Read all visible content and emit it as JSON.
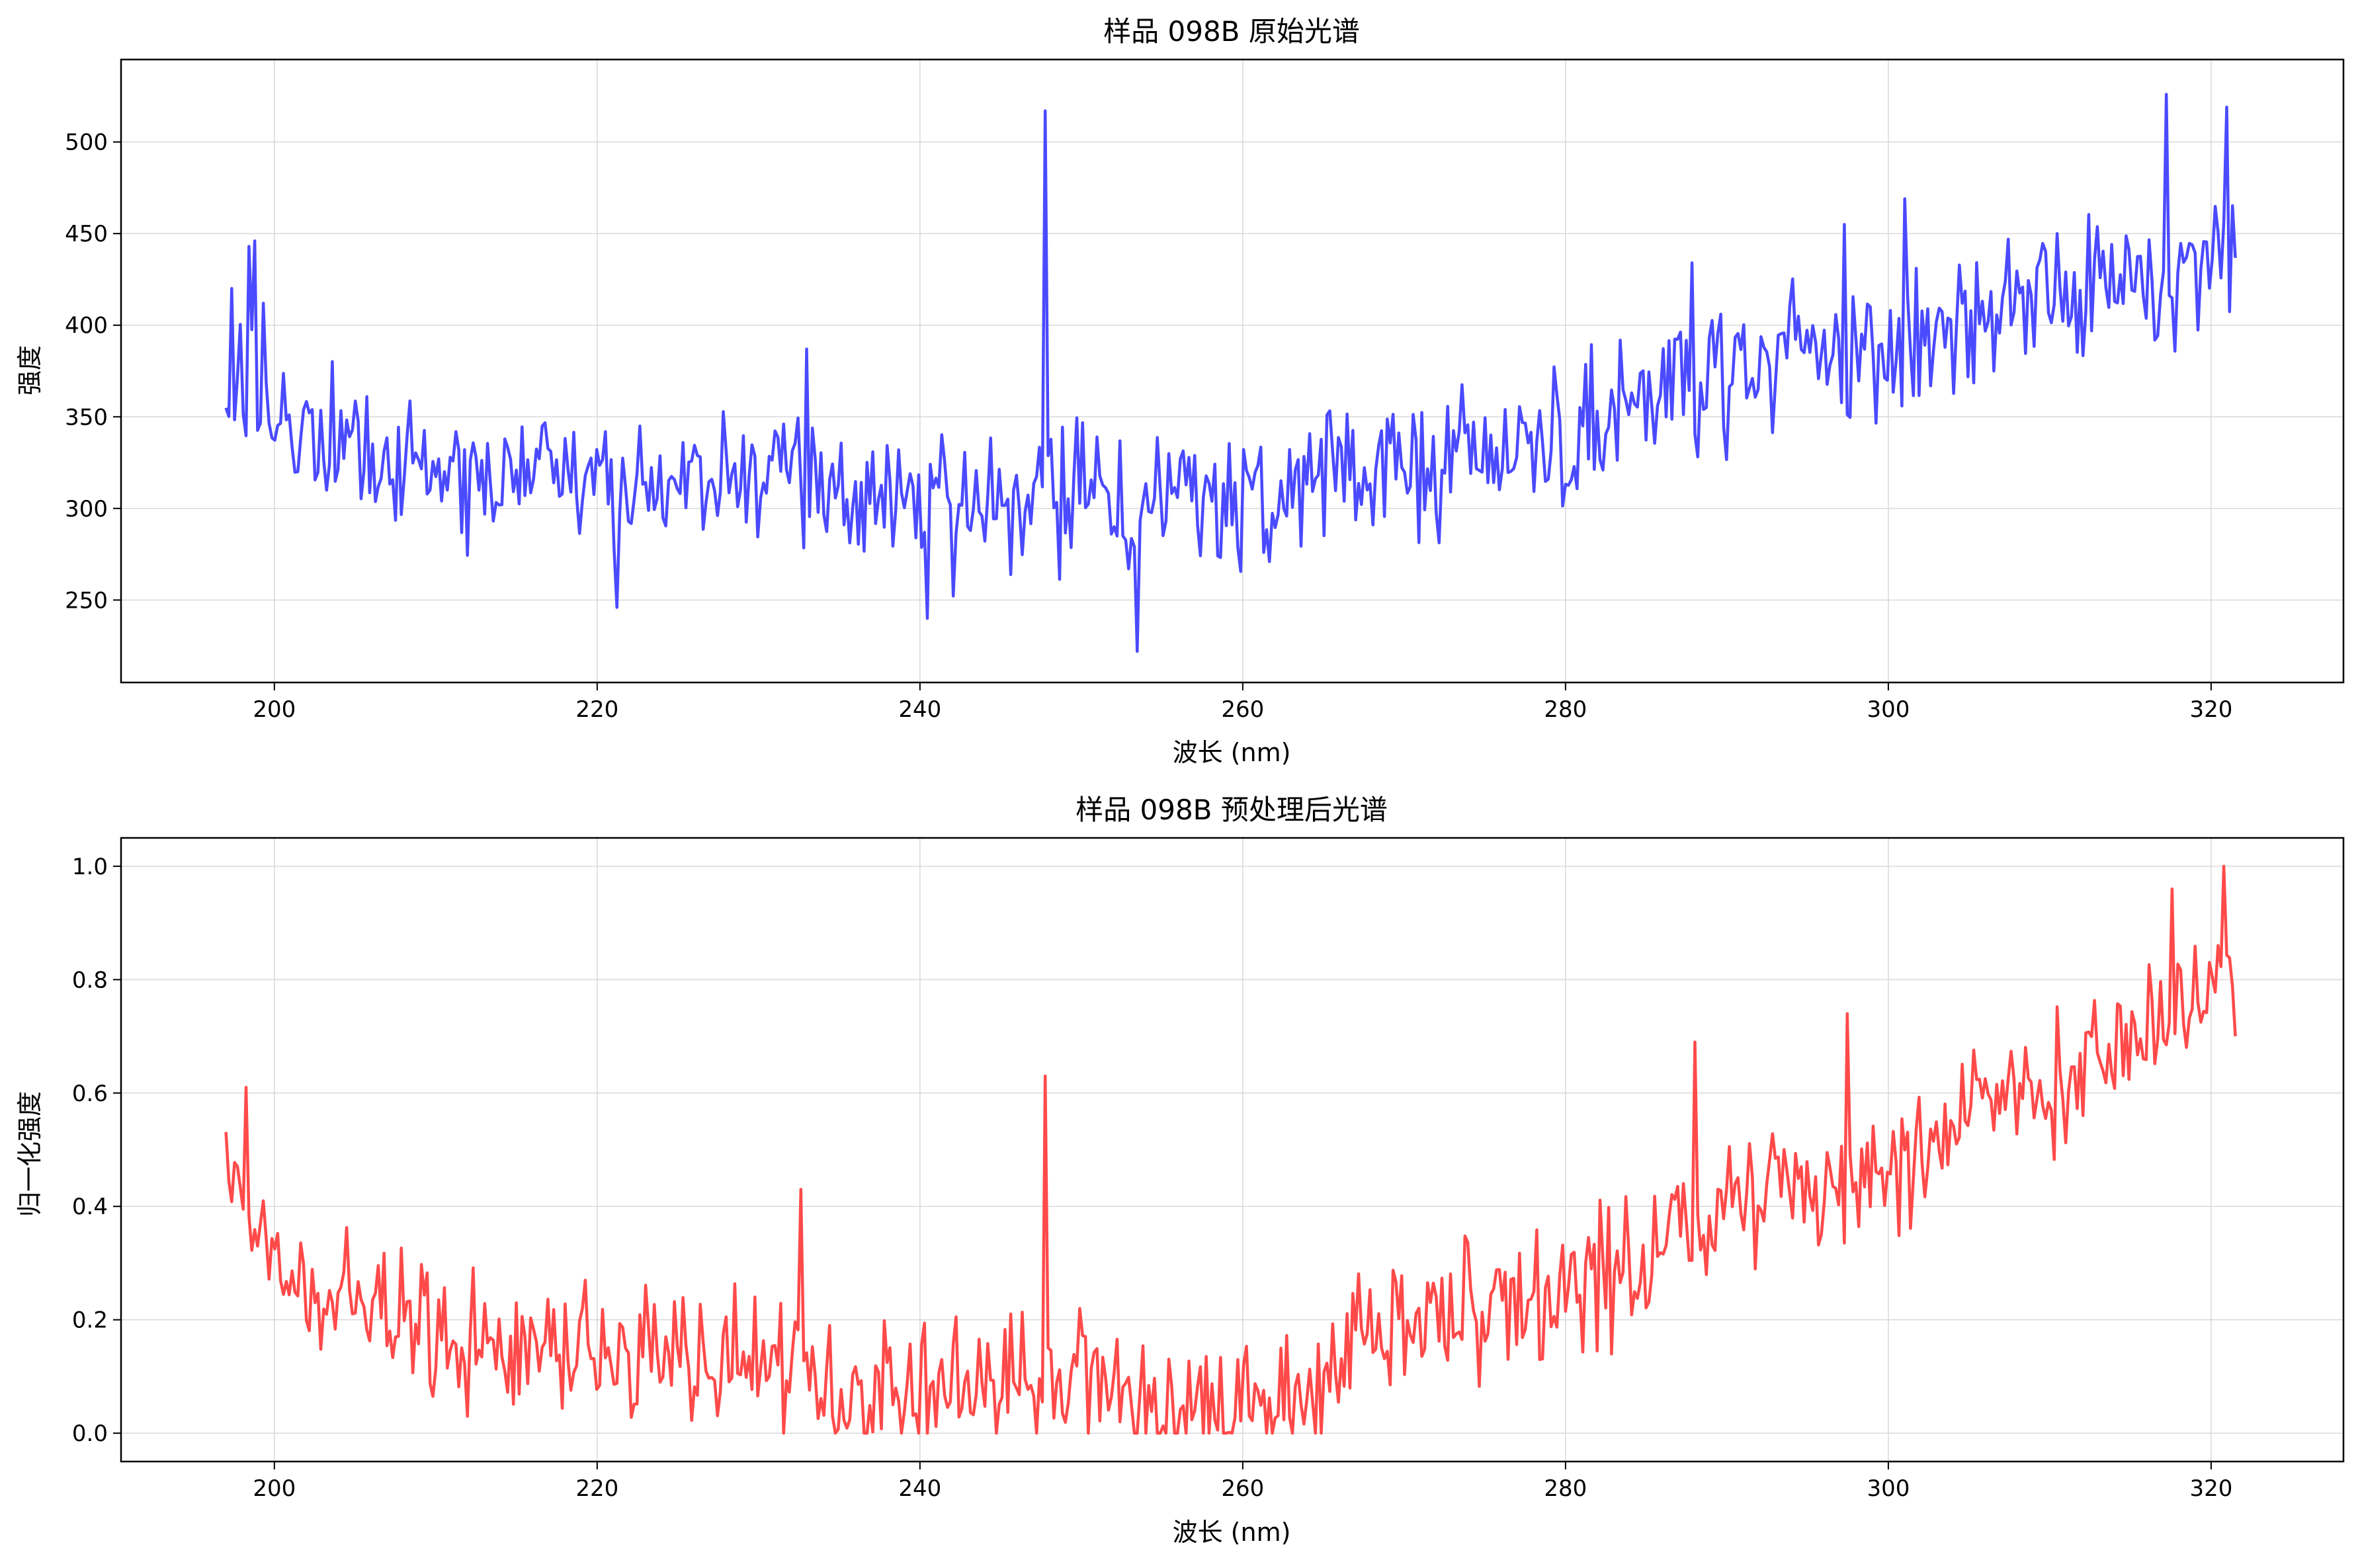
{
  "chart_data": [
    {
      "type": "line",
      "title": "样品 098B 原始光谱",
      "xlabel": "波长 (nm)",
      "ylabel": "强度",
      "xlim": [
        190.5,
        328.2
      ],
      "ylim": [
        205,
        545
      ],
      "xticks": [
        200,
        220,
        240,
        260,
        280,
        300,
        320
      ],
      "yticks": [
        250,
        300,
        350,
        400,
        450,
        500
      ],
      "grid": true,
      "color": "#4a4aff",
      "x_range": [
        197,
        321.5
      ],
      "n_points": 700,
      "trend_anchors": [
        [
          197,
          380
        ],
        [
          200,
          345
        ],
        [
          205,
          330
        ],
        [
          210,
          318
        ],
        [
          220,
          315
        ],
        [
          230,
          312
        ],
        [
          240,
          305
        ],
        [
          250,
          304
        ],
        [
          255,
          302
        ],
        [
          260,
          300
        ],
        [
          265,
          315
        ],
        [
          270,
          325
        ],
        [
          275,
          330
        ],
        [
          280,
          338
        ],
        [
          285,
          370
        ],
        [
          290,
          375
        ],
        [
          295,
          385
        ],
        [
          300,
          390
        ],
        [
          305,
          405
        ],
        [
          310,
          413
        ],
        [
          315,
          425
        ],
        [
          320,
          440
        ],
        [
          321.5,
          445
        ]
      ],
      "noise_amplitude": 28,
      "spikes": [
        [
          197.4,
          420
        ],
        [
          198.4,
          443
        ],
        [
          198.8,
          446
        ],
        [
          199.4,
          412
        ],
        [
          221.3,
          246
        ],
        [
          247.8,
          517
        ],
        [
          233.0,
          387
        ],
        [
          240.4,
          240
        ],
        [
          253.4,
          222
        ],
        [
          287.8,
          434
        ],
        [
          297.3,
          455
        ],
        [
          301.1,
          469
        ],
        [
          317.3,
          526
        ],
        [
          321.0,
          519
        ],
        [
          310.5,
          450
        ]
      ]
    },
    {
      "type": "line",
      "title": "样品 098B 预处理后光谱",
      "xlabel": "波长 (nm)",
      "ylabel": "归一化强度",
      "xlim": [
        190.5,
        328.2
      ],
      "ylim": [
        -0.05,
        1.05
      ],
      "xticks": [
        200,
        220,
        240,
        260,
        280,
        300,
        320
      ],
      "yticks": [
        0.0,
        0.2,
        0.4,
        0.6,
        0.8,
        1.0
      ],
      "grid": true,
      "color": "#ff4a4a",
      "x_range": [
        197,
        321.5
      ],
      "n_points": 700,
      "trend_anchors": [
        [
          197,
          0.45
        ],
        [
          200,
          0.28
        ],
        [
          205,
          0.22
        ],
        [
          210,
          0.17
        ],
        [
          220,
          0.14
        ],
        [
          230,
          0.12
        ],
        [
          235,
          0.06
        ],
        [
          240,
          0.08
        ],
        [
          245,
          0.08
        ],
        [
          250,
          0.1
        ],
        [
          255,
          0.04
        ],
        [
          260,
          0.05
        ],
        [
          265,
          0.07
        ],
        [
          267,
          0.2
        ],
        [
          275,
          0.22
        ],
        [
          280,
          0.24
        ],
        [
          285,
          0.3
        ],
        [
          290,
          0.4
        ],
        [
          300,
          0.45
        ],
        [
          305,
          0.58
        ],
        [
          310,
          0.63
        ],
        [
          315,
          0.7
        ],
        [
          320,
          0.77
        ],
        [
          321.5,
          0.8
        ]
      ],
      "noise_amplitude": 0.09,
      "clip": [
        0,
        1
      ],
      "spikes": [
        [
          198.3,
          0.61
        ],
        [
          232.6,
          0.43
        ],
        [
          247.8,
          0.63
        ],
        [
          288.0,
          0.69
        ],
        [
          297.4,
          0.74
        ],
        [
          317.5,
          0.96
        ],
        [
          320.8,
          1.0
        ],
        [
          321.5,
          0.7
        ]
      ]
    }
  ]
}
